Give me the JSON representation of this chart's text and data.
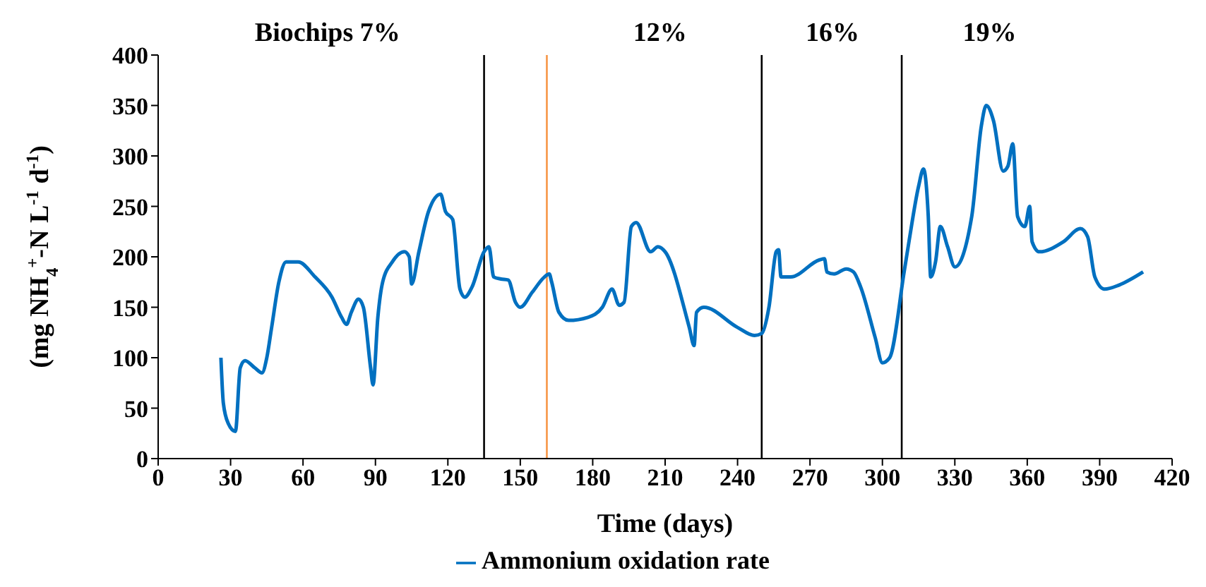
{
  "chart_data": {
    "type": "line",
    "xlabel": "Time (days)",
    "ylabel": "(mg NH$_{4}$$^{+}$-N L$^{-1}$ d$^{-1}$)",
    "xlim": [
      0,
      420
    ],
    "xticks": [
      0,
      30,
      60,
      90,
      120,
      150,
      180,
      210,
      240,
      270,
      300,
      330,
      360,
      390,
      420
    ],
    "ylim": [
      0,
      400
    ],
    "yticks": [
      0,
      50,
      100,
      150,
      200,
      250,
      300,
      350,
      400
    ],
    "series": [
      {
        "name": "Ammonium oxidation rate",
        "color": "#0070c0",
        "x": [
          26,
          27,
          29,
          32,
          34,
          36,
          40,
          43,
          45,
          47,
          50,
          53,
          58,
          65,
          72,
          76,
          78,
          80,
          83,
          85,
          88,
          89,
          91,
          93,
          97,
          102,
          104,
          105,
          108,
          112,
          117,
          119,
          122,
          125,
          127,
          130,
          135,
          137,
          139,
          142,
          145,
          148,
          150,
          155,
          160,
          162,
          163,
          166,
          170,
          178,
          184,
          188,
          191,
          193,
          196,
          198,
          204,
          207,
          210,
          220,
          222,
          223,
          226,
          240,
          247,
          250,
          253,
          256,
          257,
          258,
          262,
          274,
          276,
          277,
          280,
          285,
          288,
          291,
          297,
          300,
          303,
          309,
          311,
          315,
          317,
          319,
          320,
          322,
          324,
          327,
          330,
          337,
          341,
          343,
          346,
          350,
          352,
          354,
          356,
          359,
          361,
          362,
          365,
          375,
          382,
          385,
          388,
          392,
          398,
          408
        ],
        "values": [
          100,
          55,
          35,
          27,
          90,
          97,
          90,
          85,
          100,
          130,
          175,
          195,
          195,
          180,
          160,
          140,
          133,
          145,
          158,
          150,
          90,
          73,
          140,
          175,
          195,
          205,
          200,
          173,
          205,
          245,
          262,
          245,
          237,
          168,
          160,
          170,
          205,
          210,
          180,
          178,
          177,
          155,
          150,
          165,
          180,
          183,
          175,
          145,
          137,
          140,
          150,
          168,
          152,
          155,
          230,
          234,
          205,
          210,
          205,
          130,
          112,
          145,
          150,
          130,
          122,
          124,
          150,
          205,
          207,
          180,
          180,
          197,
          198,
          185,
          183,
          188,
          185,
          170,
          120,
          95,
          100,
          185,
          215,
          270,
          287,
          240,
          180,
          195,
          230,
          210,
          190,
          240,
          330,
          350,
          335,
          285,
          290,
          312,
          240,
          230,
          250,
          215,
          205,
          215,
          228,
          220,
          180,
          168,
          172,
          185
        ]
      }
    ],
    "ref_lines": [
      {
        "axis": "x",
        "value": 135,
        "color": "#000000"
      },
      {
        "axis": "x",
        "value": 161,
        "color": "#f79646"
      },
      {
        "axis": "x",
        "value": 250,
        "color": "#000000"
      },
      {
        "axis": "x",
        "value": 308,
        "color": "#000000"
      }
    ],
    "annotations": [
      "Biochips 7%",
      "12%",
      "16%",
      "19%"
    ],
    "legend": "bottom",
    "grid": false,
    "marker": "none",
    "line_style": "solid"
  }
}
